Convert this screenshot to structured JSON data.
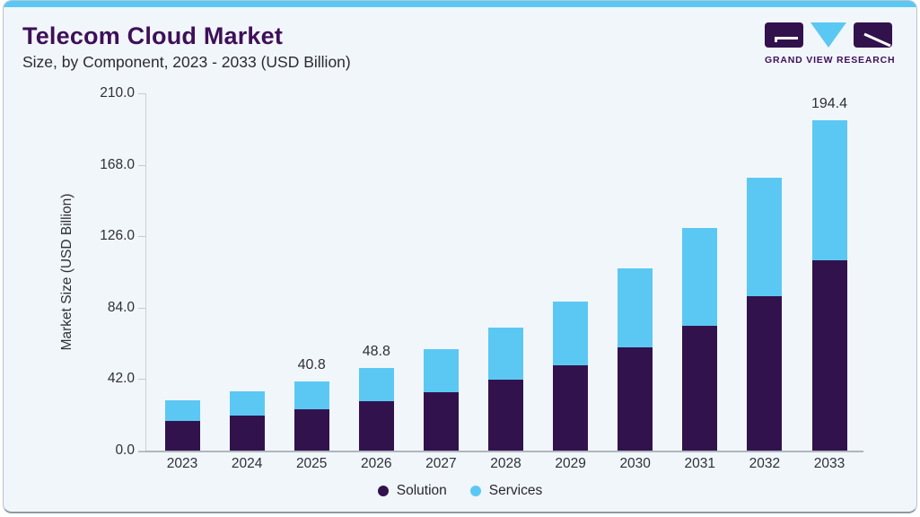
{
  "header": {
    "title": "Telecom Cloud Market",
    "subtitle": "Size, by Component, 2023 - 2033 (USD Billion)"
  },
  "logo": {
    "text": "GRAND VIEW RESEARCH"
  },
  "colors": {
    "accent_blue": "#5bc8f3",
    "solution_purple": "#32124d",
    "title_purple": "#3e1058",
    "card_bg": "#f1f6fa",
    "text_dark": "#2d3038",
    "axis_gray": "#c3cbd2"
  },
  "chart_data": {
    "type": "bar",
    "stacked": true,
    "title": "Telecom Cloud Market Size, by Component, 2023 - 2033 (USD Billion)",
    "categories": [
      "2023",
      "2024",
      "2025",
      "2026",
      "2027",
      "2028",
      "2029",
      "2030",
      "2031",
      "2032",
      "2033"
    ],
    "series": [
      {
        "name": "Solution",
        "color": "#32124d",
        "values": [
          17.4,
          20.7,
          24.2,
          28.8,
          34.4,
          41.8,
          50.0,
          60.9,
          73.6,
          90.5,
          112.1
        ]
      },
      {
        "name": "Services",
        "color": "#5bc8f3",
        "values": [
          11.9,
          14.3,
          16.6,
          20.0,
          25.0,
          30.6,
          37.8,
          46.0,
          57.2,
          69.7,
          82.3
        ]
      }
    ],
    "totals": [
      29.3,
      35.0,
      40.8,
      48.8,
      59.4,
      72.4,
      87.8,
      106.9,
      130.8,
      160.2,
      194.4
    ],
    "total_labels": [
      "",
      "",
      "40.8",
      "48.8",
      "",
      "",
      "",
      "",
      "",
      "",
      "194.4"
    ],
    "ylabel": "Market Size (USD Billion)",
    "y_ticks": [
      "210.0",
      "168.0",
      "126.0",
      "84.0",
      "42.0",
      "0.0"
    ],
    "ylim": [
      0,
      210
    ],
    "grid": false,
    "legend_position": "bottom"
  }
}
